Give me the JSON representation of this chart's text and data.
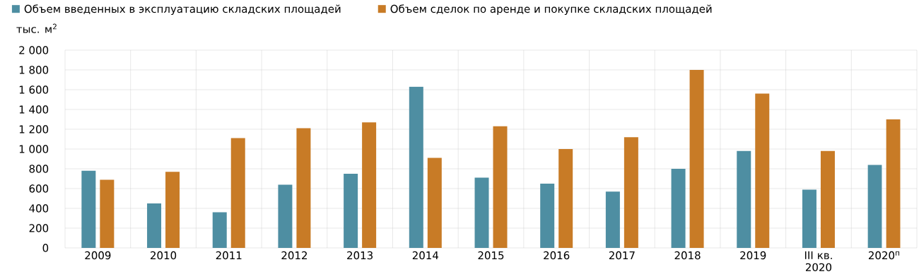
{
  "chart_data": {
    "type": "bar",
    "ylabel": "тыс. м$^{2}$",
    "categories": [
      "2009",
      "2010",
      "2011",
      "2012",
      "2013",
      "2014",
      "2015",
      "2016",
      "2017",
      "2018",
      "2019",
      "III кв. 2020",
      "2020$^{п}$"
    ],
    "series": [
      {
        "name": "Объем введенных в эксплуатацию складских площадей",
        "color": "#4e8ea2",
        "values": [
          780,
          450,
          360,
          640,
          750,
          1630,
          710,
          650,
          570,
          800,
          980,
          590,
          840
        ]
      },
      {
        "name": "Объем сделок по аренде и покупке складских площадей",
        "color": "#c87b26",
        "values": [
          690,
          770,
          1110,
          1210,
          1270,
          910,
          1230,
          1000,
          1120,
          1800,
          1560,
          980,
          1300
        ]
      }
    ],
    "ylim": [
      0,
      2000
    ],
    "yticks": [
      0,
      200,
      400,
      600,
      800,
      {
        "value": 1000,
        "label": "1 000"
      },
      {
        "value": 1200,
        "label": "1 200"
      },
      {
        "value": 1400,
        "label": "1 400"
      },
      {
        "value": 1600,
        "label": "1 600"
      },
      {
        "value": 1800,
        "label": "1 800"
      },
      {
        "value": 2000,
        "label": "2 000"
      }
    ],
    "grid": true,
    "legend": "top"
  }
}
